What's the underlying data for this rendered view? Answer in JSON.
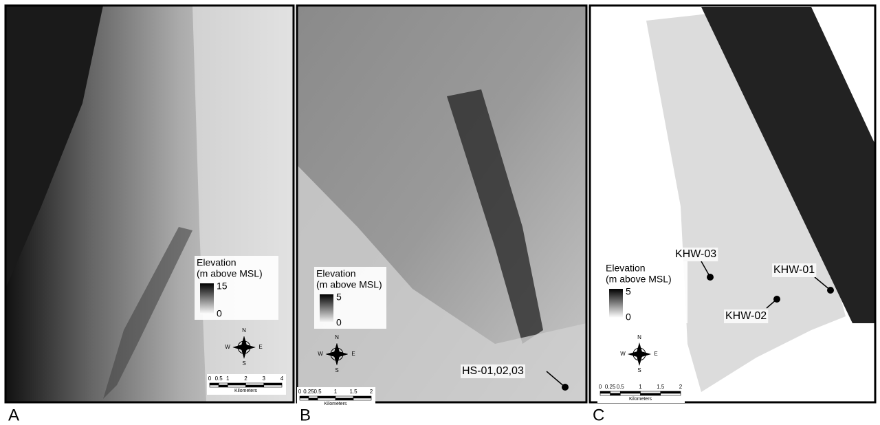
{
  "panels": [
    {
      "letter": "A",
      "legend": {
        "title": "Elevation",
        "subtitle": "(m above MSL)",
        "max": "15",
        "min": "0"
      },
      "compass": {
        "n": "N",
        "s": "S",
        "e": "E",
        "w": "W"
      },
      "scale": {
        "ticks": [
          "0",
          "0.5",
          "1",
          "2",
          "3",
          "4"
        ],
        "unit": "Kilometers"
      },
      "sites": []
    },
    {
      "letter": "B",
      "legend": {
        "title": "Elevation",
        "subtitle": "(m above MSL)",
        "max": "5",
        "min": "0"
      },
      "compass": {
        "n": "N",
        "s": "S",
        "e": "E",
        "w": "W"
      },
      "scale": {
        "ticks": [
          "0",
          "0.25",
          "0.5",
          "1",
          "1.5",
          "2"
        ],
        "unit": "Kilometers"
      },
      "sites": [
        "HS-01,02,03"
      ]
    },
    {
      "letter": "C",
      "legend": {
        "title": "Elevation",
        "subtitle": "(m above MSL)",
        "max": "5",
        "min": "0"
      },
      "compass": {
        "n": "N",
        "s": "S",
        "e": "E",
        "w": "W"
      },
      "scale": {
        "ticks": [
          "0",
          "0.25",
          "0.5",
          "1",
          "1.5",
          "2"
        ],
        "unit": "Kilometers"
      },
      "sites": [
        "KHW-03",
        "KHW-01",
        "KHW-02"
      ]
    }
  ]
}
